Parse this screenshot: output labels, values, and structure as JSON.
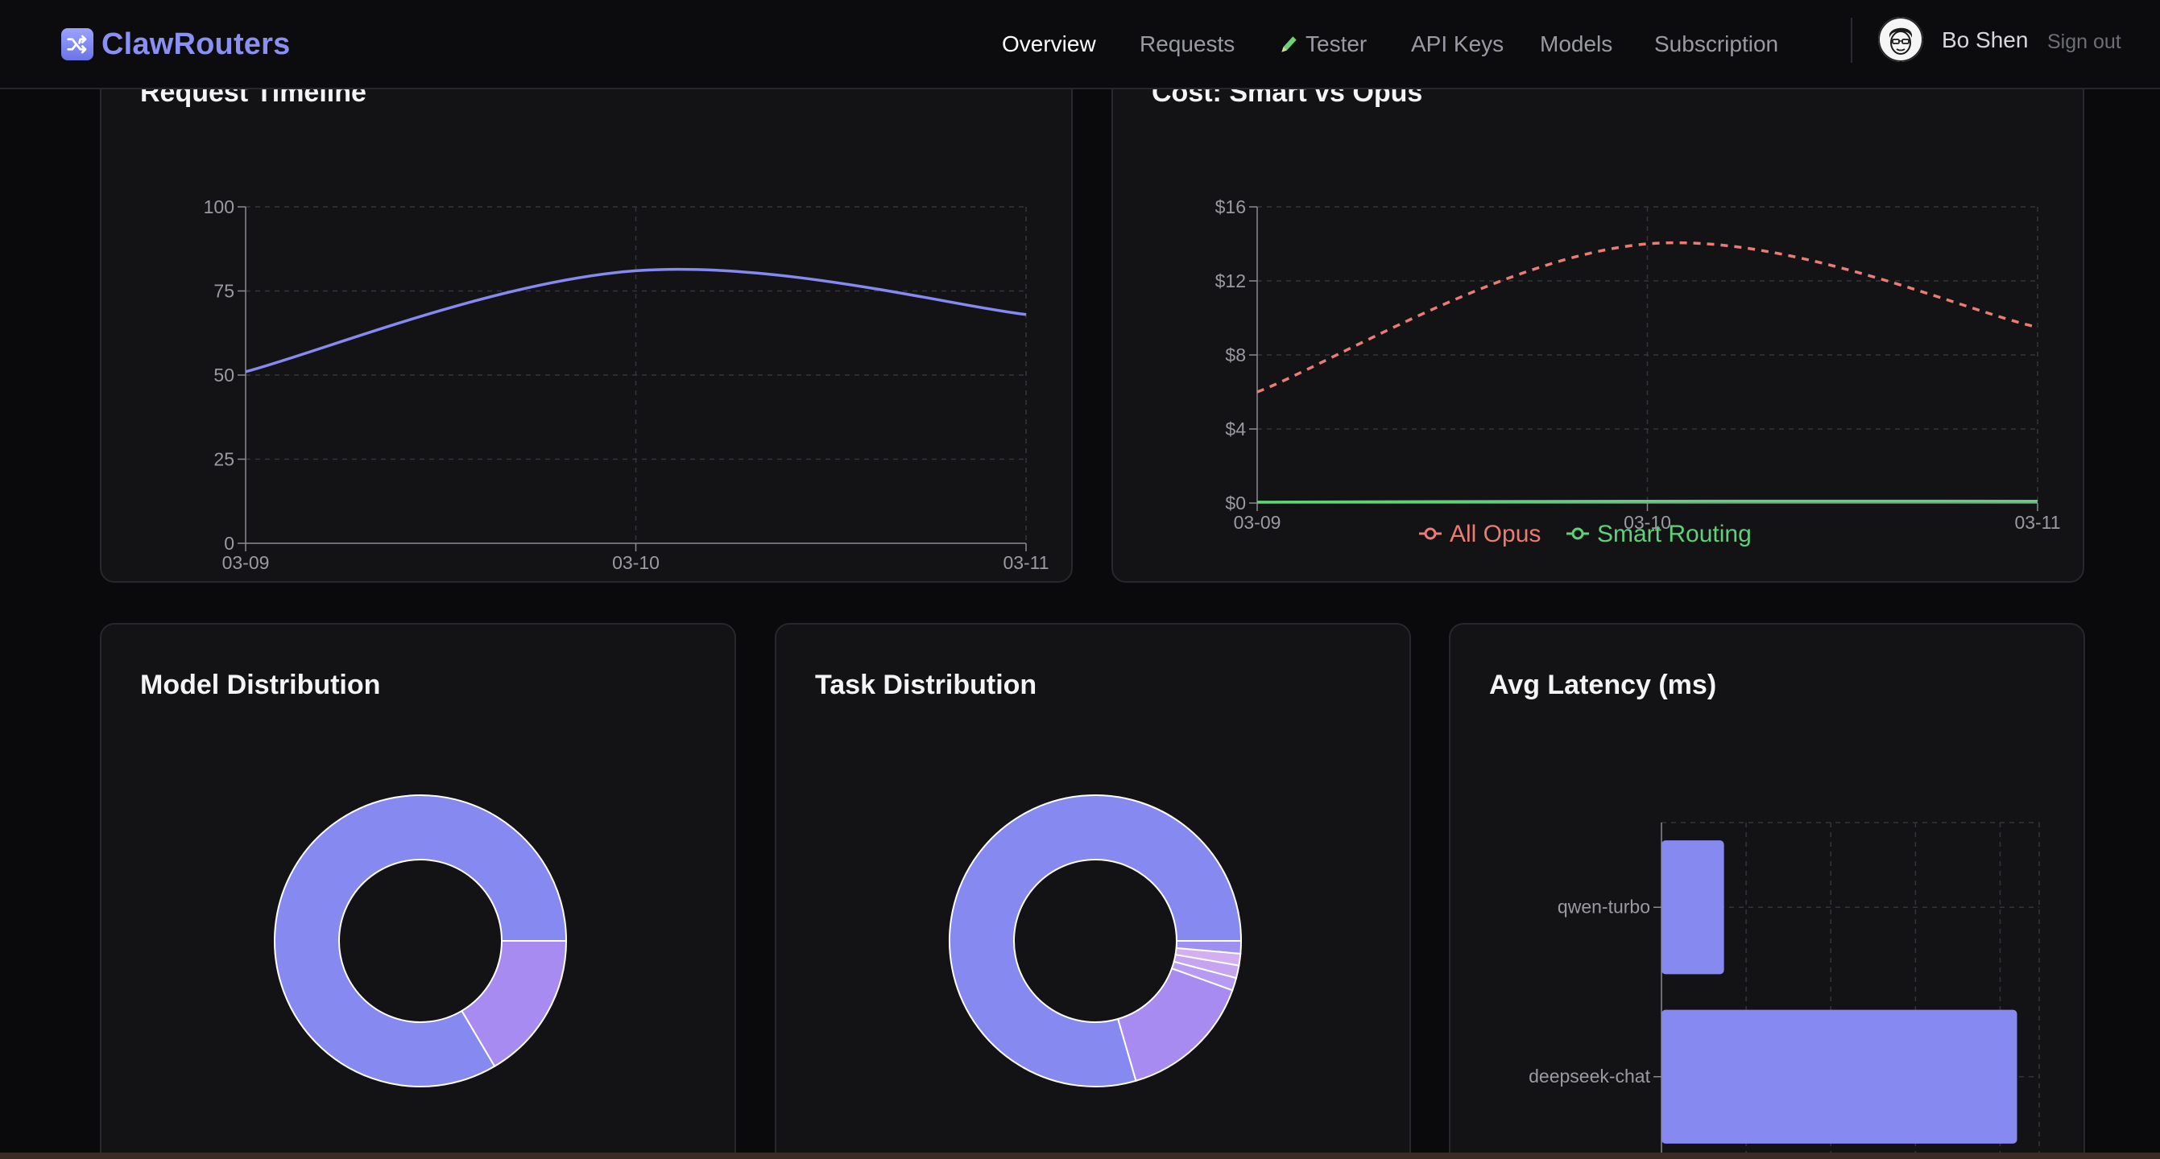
{
  "app": {
    "name": "ClawRouters",
    "logo_icon": "shuffle-icon",
    "accent": "#8a8ff2"
  },
  "nav": {
    "items": [
      {
        "label": "Overview",
        "active": true
      },
      {
        "label": "Requests",
        "active": false
      },
      {
        "label": "Tester",
        "active": false,
        "icon": "pencil-icon"
      },
      {
        "label": "API Keys",
        "active": false
      },
      {
        "label": "Models",
        "active": false
      },
      {
        "label": "Subscription",
        "active": false
      }
    ]
  },
  "user": {
    "name": "Bo Shen",
    "sign_out_label": "Sign out",
    "avatar_icon": "avatar-face-icon"
  },
  "cards": {
    "request_timeline": {
      "title": "Request Timeline"
    },
    "cost": {
      "title": "Cost: Smart vs Opus"
    },
    "model_distribution": {
      "title": "Model Distribution"
    },
    "task_distribution": {
      "title": "Task Distribution"
    },
    "latency": {
      "title": "Avg Latency (ms)"
    }
  },
  "colors": {
    "primary_series": "#8689f0",
    "opus": "#ea7c74",
    "smart": "#5fd17a",
    "secondary_slice": "#a78bf0",
    "grid": "#34343a",
    "axis": "#8a8a92"
  },
  "chart_data": [
    {
      "id": "request_timeline",
      "type": "line",
      "title": "Request Timeline",
      "x": [
        "03-09",
        "03-10",
        "03-11"
      ],
      "series": [
        {
          "values": [
            51,
            81,
            68
          ]
        }
      ],
      "ylim": [
        0,
        100
      ],
      "yticks": [
        "0",
        "25",
        "50",
        "75",
        "100"
      ],
      "grid": true
    },
    {
      "id": "cost",
      "type": "line",
      "title": "Cost: Smart vs Opus",
      "x": [
        "03-09",
        "03-10",
        "03-11"
      ],
      "series": [
        {
          "name": "All Opus",
          "values": [
            6,
            14,
            9.5
          ],
          "style": "dashed"
        },
        {
          "name": "Smart Routing",
          "values": [
            0.05,
            0.1,
            0.1
          ],
          "style": "solid"
        }
      ],
      "ylim": [
        0,
        16
      ],
      "yticks": [
        "$0",
        "$4",
        "$8",
        "$12",
        "$16"
      ],
      "legend": "bottom",
      "grid": true
    },
    {
      "id": "model_distribution",
      "type": "pie",
      "title": "Model Distribution",
      "slices": [
        {
          "value": 83.5,
          "color": "#8689f0"
        },
        {
          "value": 16.5,
          "color": "#a78bf0"
        }
      ],
      "donut": true
    },
    {
      "id": "task_distribution",
      "type": "pie",
      "title": "Task Distribution",
      "slices": [
        {
          "value": 79.5,
          "color": "#8689f0"
        },
        {
          "value": 15.0,
          "color": "#a78bf0"
        },
        {
          "value": 1.4,
          "color": "#b79af2"
        },
        {
          "value": 1.4,
          "color": "#c6a4f0"
        },
        {
          "value": 1.3,
          "color": "#d3aff2"
        },
        {
          "value": 1.4,
          "color": "#9d90f0"
        }
      ],
      "donut": true
    },
    {
      "id": "latency",
      "type": "bar",
      "orientation": "horizontal",
      "title": "Avg Latency (ms)",
      "categories": [
        "qwen-turbo",
        "deepseek-chat"
      ],
      "values": [
        4800,
        27300
      ],
      "xlim": [
        0,
        29000
      ],
      "xticks": [
        "0",
        "6500",
        "13000",
        "19500",
        "26000"
      ],
      "grid": true
    }
  ]
}
